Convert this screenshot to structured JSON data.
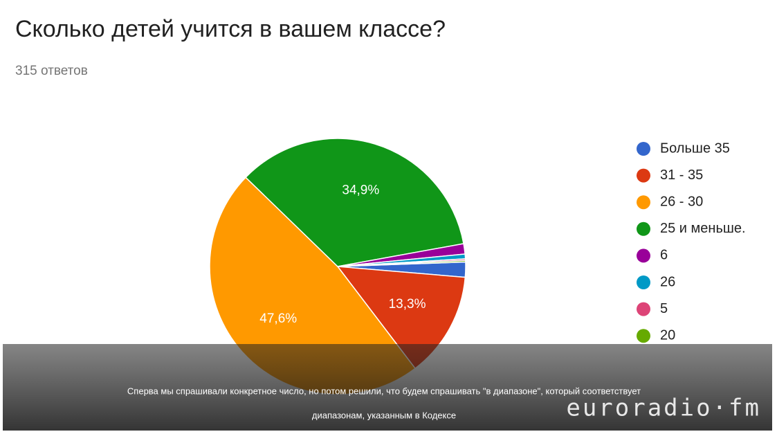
{
  "chart_data": {
    "type": "pie",
    "title": "Сколько детей учится в вашем классе?",
    "subtitle": "315 ответов",
    "categories": [
      "Больше 35",
      "31 - 35",
      "26 - 30",
      "25 и меньше.",
      "6",
      "26",
      "5",
      "20"
    ],
    "values": [
      1.9,
      13.3,
      47.6,
      34.9,
      1.3,
      0.6,
      0.2,
      0.2
    ],
    "value_labels": [
      null,
      "13,3%",
      "47,6%",
      "34,9%",
      null,
      null,
      null,
      null
    ],
    "colors": [
      "#3366cc",
      "#dc3912",
      "#ff9900",
      "#109618",
      "#990099",
      "#0099c6",
      "#dd4477",
      "#66aa00"
    ],
    "legend": "right"
  },
  "overlay": {
    "caption_lines": [
      "Сперва мы спрашивали конкретное число, но потом решили, что будем спрашивать \"в диапазоне\", который соответствует",
      "диапазонам, указанным в Кодексе"
    ],
    "watermark": "euroradio·fm"
  }
}
